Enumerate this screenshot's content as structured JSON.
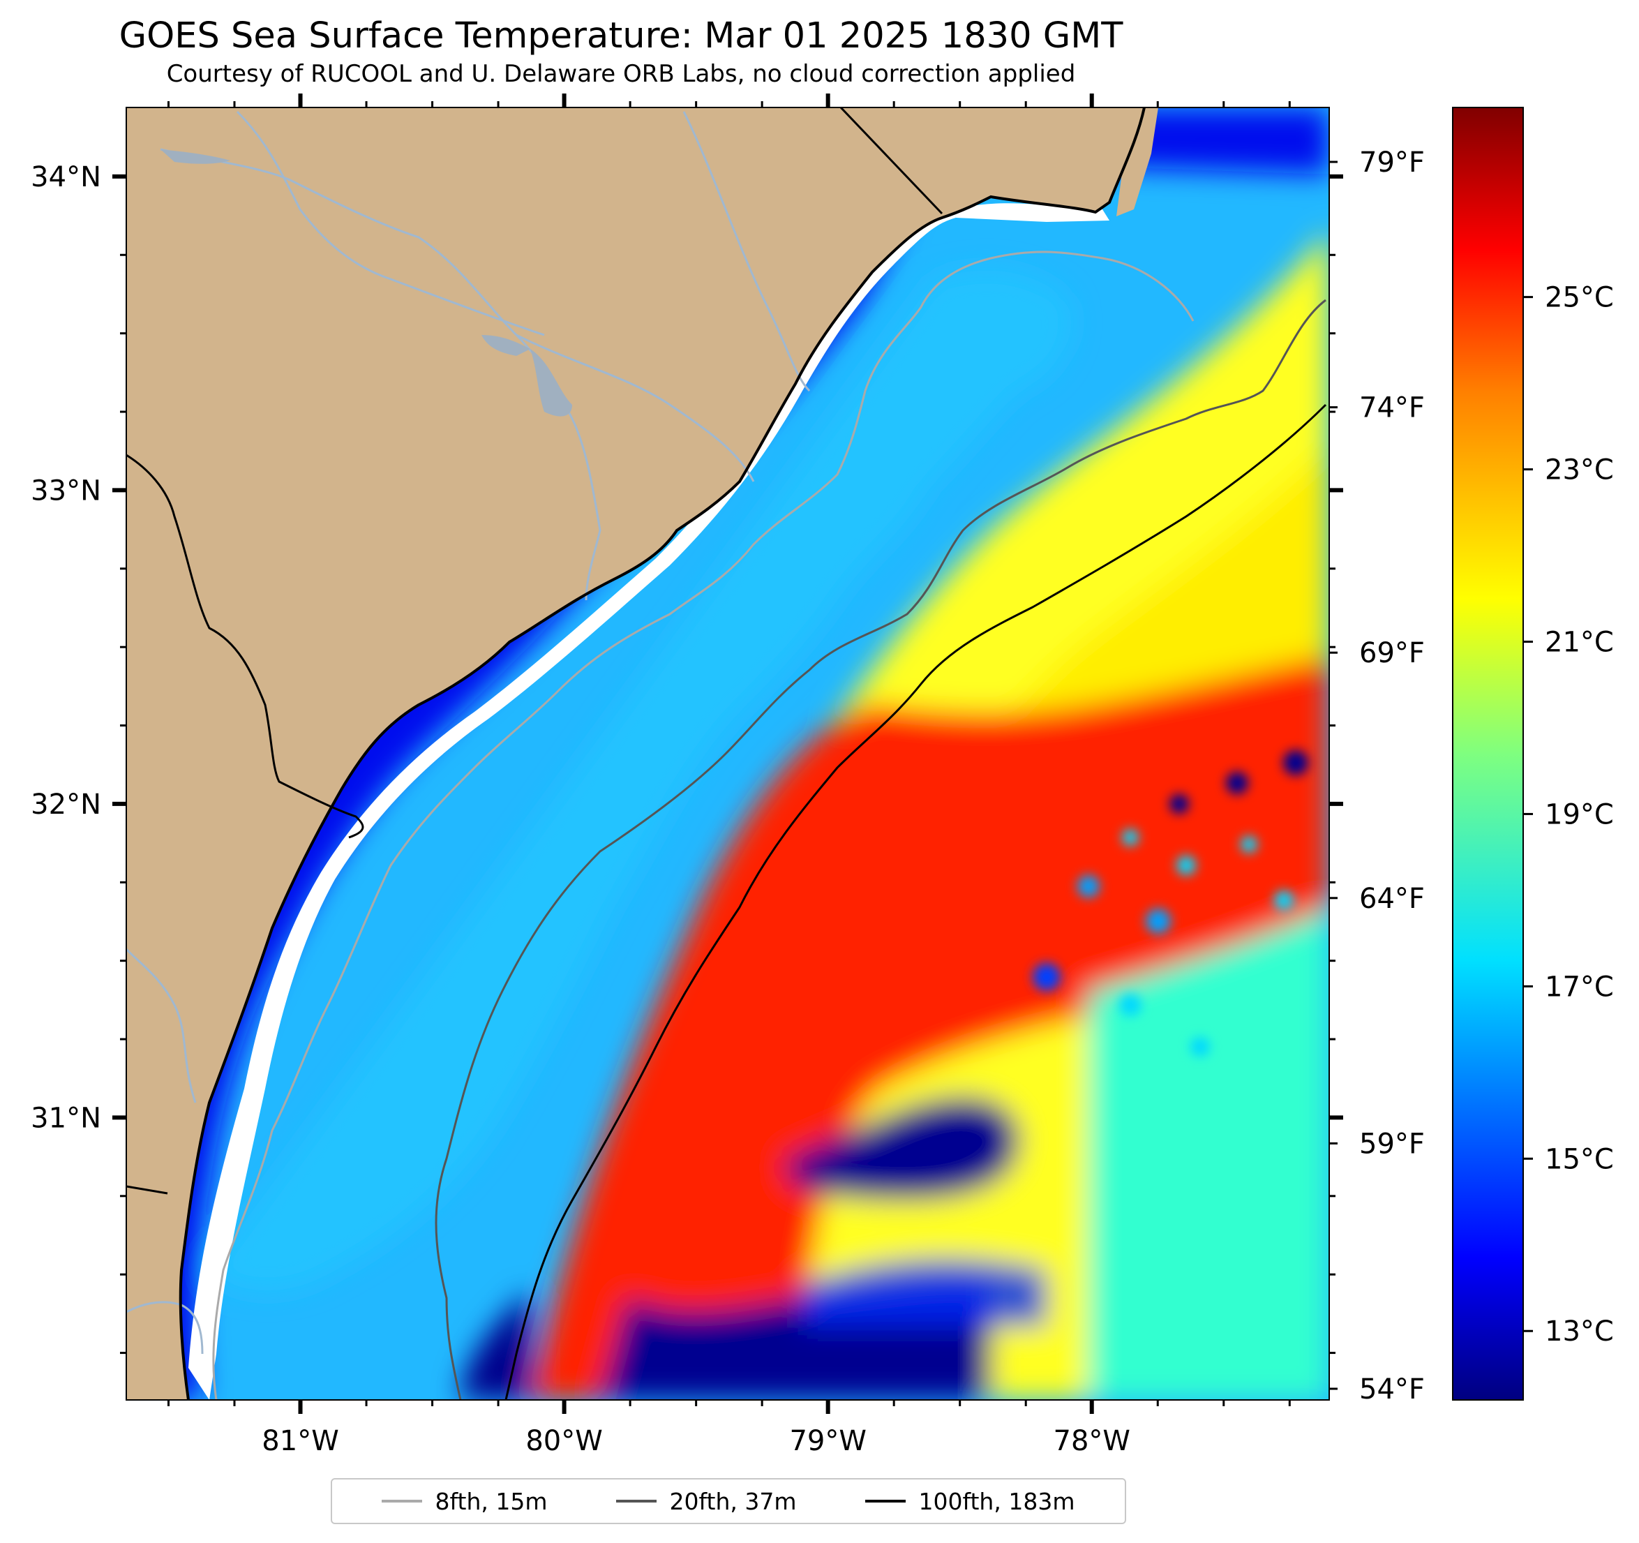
{
  "title": "GOES Sea Surface Temperature: Mar 01 2025 1830 GMT",
  "subtitle": "Courtesy of RUCOOL and U. Delaware ORB Labs, no cloud correction applied",
  "map": {
    "lon_range": [
      -81.66,
      -77.1
    ],
    "lat_range": [
      30.1,
      34.22
    ],
    "land_color": "#d2b48c",
    "longitude_ticks": [
      {
        "lon": -81,
        "label": "81°W"
      },
      {
        "lon": -80,
        "label": "80°W"
      },
      {
        "lon": -79,
        "label": "79°W"
      },
      {
        "lon": -78,
        "label": "78°W"
      }
    ],
    "latitude_ticks": [
      {
        "lat": 34,
        "label": "34°N"
      },
      {
        "lat": 33,
        "label": "33°N"
      },
      {
        "lat": 32,
        "label": "32°N"
      },
      {
        "lat": 31,
        "label": "31°N"
      }
    ],
    "fahrenheit_ticks": [
      {
        "label": "79°F"
      },
      {
        "label": "74°F"
      },
      {
        "label": "69°F"
      },
      {
        "label": "64°F"
      },
      {
        "label": "59°F"
      },
      {
        "label": "54°F"
      }
    ]
  },
  "colorbar": {
    "range_c": [
      12.2,
      27.2
    ],
    "ticks": [
      {
        "value": 25,
        "label": "25°C"
      },
      {
        "value": 23,
        "label": "23°C"
      },
      {
        "value": 21,
        "label": "21°C"
      },
      {
        "value": 19,
        "label": "19°C"
      },
      {
        "value": 17,
        "label": "17°C"
      },
      {
        "value": 15,
        "label": "15°C"
      },
      {
        "value": 13,
        "label": "13°C"
      }
    ]
  },
  "legend": {
    "items": [
      {
        "label": "8fth, 15m",
        "color": "#aaaaaa"
      },
      {
        "label": "20fth, 37m",
        "color": "#555555"
      },
      {
        "label": "100fth, 183m",
        "color": "#000000"
      }
    ]
  }
}
